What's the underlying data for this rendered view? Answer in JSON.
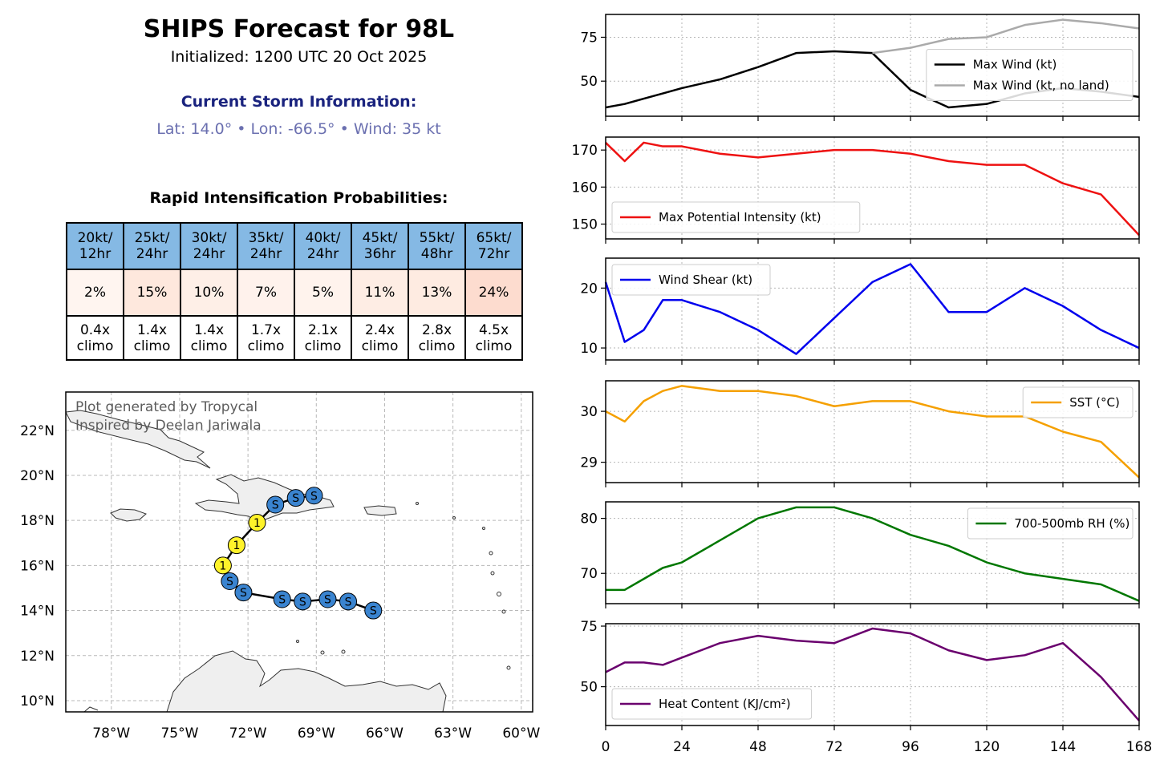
{
  "header": {
    "title": "SHIPS Forecast for 98L",
    "initialized": "Initialized: 1200 UTC 20 Oct 2025",
    "storm_heading": "Current Storm Information:",
    "storm_info": "Lat: 14.0° • Lon: -66.5° • Wind: 35 kt"
  },
  "ri": {
    "title": "Rapid Intensification Probabilities:",
    "columns": [
      {
        "h1": "20kt/",
        "h2": "12hr",
        "prob": "2%",
        "c1": "0.4x",
        "c2": "climo",
        "shade": "#fff5f0"
      },
      {
        "h1": "25kt/",
        "h2": "24hr",
        "prob": "15%",
        "c1": "1.4x",
        "c2": "climo",
        "shade": "#fee8dd"
      },
      {
        "h1": "30kt/",
        "h2": "24hr",
        "prob": "10%",
        "c1": "1.4x",
        "c2": "climo",
        "shade": "#feefe7"
      },
      {
        "h1": "35kt/",
        "h2": "24hr",
        "prob": "7%",
        "c1": "1.7x",
        "c2": "climo",
        "shade": "#fff2ec"
      },
      {
        "h1": "40kt/",
        "h2": "24hr",
        "prob": "5%",
        "c1": "2.1x",
        "c2": "climo",
        "shade": "#fff3ed"
      },
      {
        "h1": "45kt/",
        "h2": "36hr",
        "prob": "11%",
        "c1": "2.4x",
        "c2": "climo",
        "shade": "#feede4"
      },
      {
        "h1": "55kt/",
        "h2": "48hr",
        "prob": "13%",
        "c1": "2.8x",
        "c2": "climo",
        "shade": "#feebe1"
      },
      {
        "h1": "65kt/",
        "h2": "72hr",
        "prob": "24%",
        "c1": "4.5x",
        "c2": "climo",
        "shade": "#fddccf"
      }
    ]
  },
  "map": {
    "watermark": [
      "Plot generated by Tropycal",
      "Inspired by Deelan Jariwala"
    ],
    "lon_ticks": [
      -78,
      -75,
      -72,
      -69,
      -66,
      -63,
      -60
    ],
    "lon_labels": [
      "78°W",
      "75°W",
      "72°W",
      "69°W",
      "66°W",
      "63°W",
      "60°W"
    ],
    "lat_ticks": [
      22,
      20,
      18,
      16,
      14,
      12,
      10
    ],
    "lat_labels": [
      "22°N",
      "20°N",
      "18°N",
      "16°N",
      "14°N",
      "12°N",
      "10°N"
    ],
    "extent": {
      "lon": [
        -80,
        -59.5
      ],
      "lat": [
        9.5,
        23.7
      ]
    },
    "track": [
      {
        "lon": -66.5,
        "lat": 14.0,
        "cat": "S"
      },
      {
        "lon": -67.6,
        "lat": 14.4,
        "cat": "S"
      },
      {
        "lon": -68.5,
        "lat": 14.5,
        "cat": "S"
      },
      {
        "lon": -69.6,
        "lat": 14.4,
        "cat": "S"
      },
      {
        "lon": -70.5,
        "lat": 14.5,
        "cat": "S"
      },
      {
        "lon": -72.2,
        "lat": 14.8,
        "cat": "S"
      },
      {
        "lon": -72.8,
        "lat": 15.3,
        "cat": "S"
      },
      {
        "lon": -73.1,
        "lat": 16.0,
        "cat": "1"
      },
      {
        "lon": -72.5,
        "lat": 16.9,
        "cat": "1"
      },
      {
        "lon": -71.6,
        "lat": 17.9,
        "cat": "1"
      },
      {
        "lon": -70.8,
        "lat": 18.7,
        "cat": "S"
      },
      {
        "lon": -69.9,
        "lat": 19.0,
        "cat": "S"
      },
      {
        "lon": -69.1,
        "lat": 19.1,
        "cat": "S"
      }
    ],
    "colors": {
      "S": "#3a84d0",
      "1": "#fff32a",
      "land": "#efefef"
    }
  },
  "chart_data": [
    {
      "type": "line",
      "x": [
        0,
        6,
        12,
        18,
        24,
        36,
        48,
        60,
        72,
        84,
        96,
        108,
        120,
        132,
        144,
        156,
        168
      ],
      "series": [
        {
          "name": "Max Wind (kt)",
          "color": "#000000",
          "values": [
            35,
            37,
            40,
            43,
            46,
            51,
            58,
            66,
            67,
            66,
            45,
            35,
            37,
            43,
            46,
            44,
            41
          ]
        },
        {
          "name": "Max Wind (kt, no land)",
          "color": "#aaaaaa",
          "values": [
            null,
            null,
            null,
            null,
            null,
            null,
            null,
            null,
            null,
            66,
            69,
            74,
            75,
            82,
            85,
            83,
            80
          ]
        }
      ],
      "yticks": [
        50,
        75
      ],
      "ylim": [
        30,
        88
      ],
      "legend": "right"
    },
    {
      "type": "line",
      "x": [
        0,
        6,
        12,
        18,
        24,
        36,
        48,
        60,
        72,
        84,
        96,
        108,
        120,
        132,
        144,
        156,
        168
      ],
      "series": [
        {
          "name": "Max Potential Intensity (kt)",
          "color": "#ee1111",
          "values": [
            172,
            167,
            172,
            171,
            171,
            169,
            168,
            169,
            170,
            170,
            169,
            167,
            166,
            166,
            161,
            158,
            147
          ]
        }
      ],
      "yticks": [
        150,
        160,
        170
      ],
      "ylim": [
        146,
        173.5
      ],
      "legend": "bottom-left"
    },
    {
      "type": "line",
      "x": [
        0,
        6,
        12,
        18,
        24,
        36,
        48,
        60,
        72,
        84,
        96,
        108,
        120,
        132,
        144,
        156,
        168
      ],
      "series": [
        {
          "name": "Wind Shear (kt)",
          "color": "#0000ee",
          "values": [
            21,
            11,
            13,
            18,
            18,
            16,
            13,
            9,
            15,
            21,
            24,
            16,
            16,
            20,
            17,
            13,
            10
          ]
        }
      ],
      "yticks": [
        10,
        20
      ],
      "ylim": [
        8,
        25
      ],
      "legend": "top-left"
    },
    {
      "type": "line",
      "x": [
        0,
        6,
        12,
        18,
        24,
        36,
        48,
        60,
        72,
        84,
        96,
        108,
        120,
        132,
        144,
        156,
        168
      ],
      "series": [
        {
          "name": "SST (°C)",
          "color": "#f5a000",
          "values": [
            30.0,
            29.8,
            30.2,
            30.4,
            30.5,
            30.4,
            30.4,
            30.3,
            30.1,
            30.2,
            30.2,
            30.0,
            29.9,
            29.9,
            29.6,
            29.4,
            28.7
          ]
        }
      ],
      "yticks": [
        29,
        30
      ],
      "ylim": [
        28.6,
        30.6
      ],
      "legend": "top-right"
    },
    {
      "type": "line",
      "x": [
        0,
        6,
        12,
        18,
        24,
        36,
        48,
        60,
        72,
        84,
        96,
        108,
        120,
        132,
        144,
        156,
        168
      ],
      "series": [
        {
          "name": "700-500mb RH (%)",
          "color": "#007700",
          "values": [
            67,
            67,
            69,
            71,
            72,
            76,
            80,
            82,
            82,
            80,
            77,
            75,
            72,
            70,
            69,
            68,
            65
          ]
        }
      ],
      "yticks": [
        70,
        80
      ],
      "ylim": [
        64.5,
        83
      ],
      "legend": "top-right"
    },
    {
      "type": "line",
      "x": [
        0,
        6,
        12,
        18,
        24,
        36,
        48,
        60,
        72,
        84,
        96,
        108,
        120,
        132,
        144,
        156,
        168
      ],
      "series": [
        {
          "name": "Heat Content (KJ/cm²)",
          "color": "#6a006e",
          "values": [
            56,
            60,
            60,
            59,
            62,
            68,
            71,
            69,
            68,
            74,
            72,
            65,
            61,
            63,
            68,
            54,
            36
          ]
        }
      ],
      "yticks": [
        50,
        75
      ],
      "ylim": [
        34,
        76
      ],
      "legend": "bottom-left",
      "xticks": [
        0,
        24,
        48,
        72,
        96,
        120,
        144,
        168
      ]
    }
  ]
}
